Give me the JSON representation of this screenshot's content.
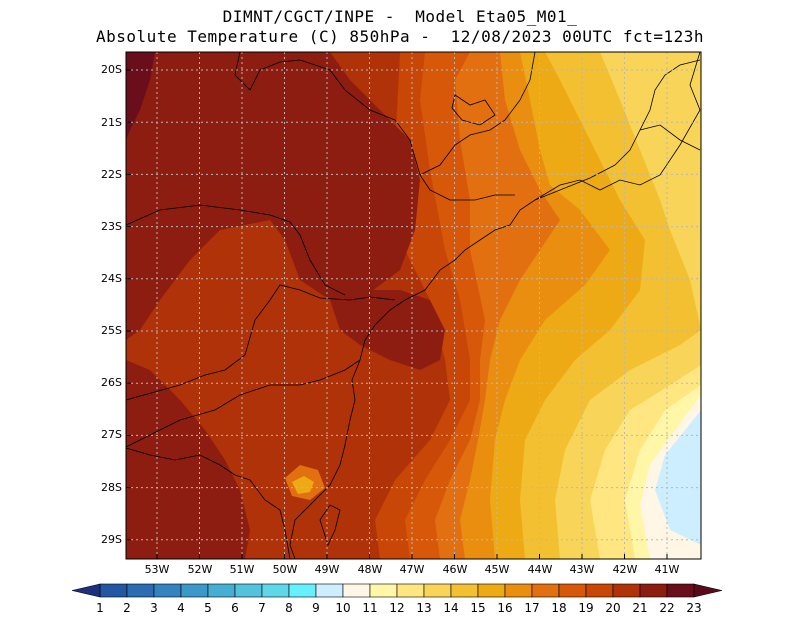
{
  "header": {
    "line1": "DIMNT/CGCT/INPE -  Model Eta05_M01_",
    "line2": "Absolute Temperature (C) 850hPa -  12/08/2023 00UTC fct=123h"
  },
  "map": {
    "lat_labels": [
      "20S",
      "21S",
      "22S",
      "23S",
      "24S",
      "25S",
      "26S",
      "27S",
      "28S",
      "29S"
    ],
    "lon_labels": [
      "53W",
      "52W",
      "51W",
      "50W",
      "49W",
      "48W",
      "47W",
      "46W",
      "45W",
      "44W",
      "43W",
      "42W",
      "41W"
    ]
  },
  "colorbar": {
    "labels": [
      "1",
      "2",
      "3",
      "4",
      "5",
      "6",
      "7",
      "8",
      "9",
      "10",
      "11",
      "12",
      "13",
      "14",
      "15",
      "16",
      "17",
      "18",
      "19",
      "20",
      "21",
      "22",
      "23"
    ],
    "colors": [
      "#1f3f8f",
      "#2357a3",
      "#2a6db2",
      "#3383bf",
      "#3b98c9",
      "#45aed2",
      "#52c3db",
      "#5ed8e6",
      "#66f0ff",
      "#cdeeff",
      "#fff6e6",
      "#fff6a8",
      "#ffe680",
      "#f8d458",
      "#f2c030",
      "#eeaa14",
      "#ea8e10",
      "#e27010",
      "#d65808",
      "#c84606",
      "#b03208",
      "#8c1d10",
      "#6a0e1c"
    ],
    "left_color": "#1d2f7f",
    "right_color": "#5a0a18"
  },
  "map_colors": {
    "t23": "#6a0e1c",
    "t22": "#8c1d10",
    "t21": "#b03208",
    "t20": "#c84606",
    "t19": "#d65808",
    "t18": "#e27010",
    "t17": "#ea8e10",
    "t16": "#eeaa14",
    "t15": "#f2c030",
    "t14": "#f8d458",
    "t13": "#ffe680",
    "t12": "#fff6a8",
    "t11": "#fff6e6",
    "t10": "#cdeeff"
  }
}
